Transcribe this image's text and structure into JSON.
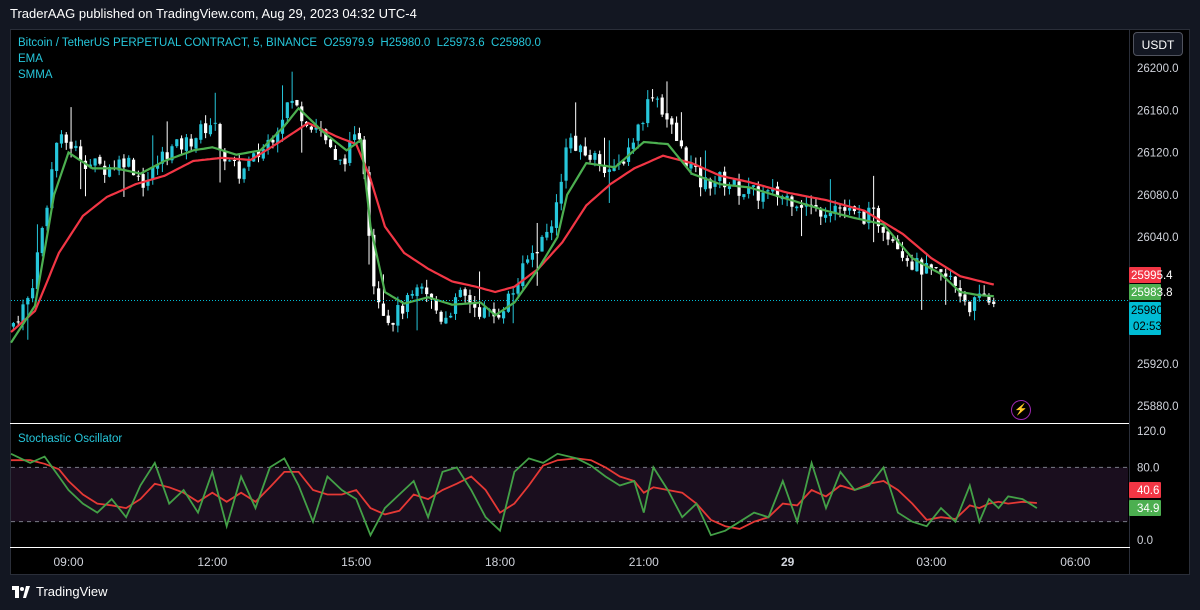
{
  "publisher": "TraderAAG published on TradingView.com, Aug 29, 2023 04:32 UTC-4",
  "currency_button": "USDT",
  "footer_logo": "TradingView",
  "colors": {
    "ema": "#4caf50",
    "smma": "#f23645",
    "up": "#26c6da",
    "down": "#ffffff",
    "stoch_k": "#43a047",
    "stoch_d": "#e53935",
    "band": "#1a0e1e"
  },
  "chart_data": [
    {
      "type": "candlestick",
      "title": "Bitcoin / TetherUS PERPETUAL CONTRACT, 5, BINANCE",
      "ohlc_label": {
        "open": "O25979.9",
        "high": "H25980.0",
        "low": "L25973.6",
        "close": "C25980.0"
      },
      "indicators": [
        "EMA",
        "SMMA"
      ],
      "y_ticks": [
        25880.0,
        25920.0,
        26040.0,
        26080.0,
        26120.0,
        26160.0,
        26200.0
      ],
      "y_tick_labels": [
        "25880.0",
        "25920.0",
        "26040.0",
        "26080.0",
        "26120.0",
        "26160.0",
        "26200.0"
      ],
      "ylim": [
        25864,
        26236
      ],
      "x_tick_labels": [
        "09:00",
        "12:00",
        "15:00",
        "18:00",
        "21:00",
        "29",
        "03:00",
        "06:00"
      ],
      "x_ticks_hours": [
        9,
        12,
        15,
        18,
        21,
        24,
        27,
        30
      ],
      "x_range_hours": [
        7.8,
        31.1
      ],
      "price_tags": [
        {
          "label": "25995.4",
          "value": 25995.4,
          "color": "#f23645"
        },
        {
          "label": "25983.8",
          "value": 25983.8,
          "color": "#4caf50"
        },
        {
          "label": "25980.0",
          "value": 25980.0,
          "color": "#00bcd4",
          "countdown": "02:53"
        }
      ],
      "close_keypoints": [
        [
          7.8,
          25955
        ],
        [
          8.2,
          25985
        ],
        [
          8.5,
          26060
        ],
        [
          8.75,
          26130
        ],
        [
          9.0,
          26130
        ],
        [
          9.4,
          26110
        ],
        [
          9.8,
          26105
        ],
        [
          10.2,
          26115
        ],
        [
          10.6,
          26090
        ],
        [
          11.0,
          26120
        ],
        [
          11.5,
          26130
        ],
        [
          12.0,
          26150
        ],
        [
          12.3,
          26110
        ],
        [
          12.6,
          26100
        ],
        [
          13.0,
          26120
        ],
        [
          13.3,
          26140
        ],
        [
          13.6,
          26170
        ],
        [
          14.0,
          26150
        ],
        [
          14.3,
          26140
        ],
        [
          14.6,
          26105
        ],
        [
          15.1,
          26140
        ],
        [
          15.2,
          26090
        ],
        [
          15.35,
          26000
        ],
        [
          15.5,
          25980
        ],
        [
          15.7,
          25960
        ],
        [
          16.0,
          25975
        ],
        [
          16.4,
          25990
        ],
        [
          16.8,
          25962
        ],
        [
          17.2,
          25985
        ],
        [
          17.6,
          25970
        ],
        [
          17.9,
          25965
        ],
        [
          18.3,
          25990
        ],
        [
          18.6,
          26020
        ],
        [
          19.0,
          26045
        ],
        [
          19.25,
          26080
        ],
        [
          19.4,
          26140
        ],
        [
          19.6,
          26120
        ],
        [
          20.0,
          26115
        ],
        [
          20.4,
          26100
        ],
        [
          20.8,
          26135
        ],
        [
          21.2,
          26180
        ],
        [
          21.5,
          26150
        ],
        [
          21.8,
          26120
        ],
        [
          22.2,
          26090
        ],
        [
          22.6,
          26095
        ],
        [
          23.0,
          26085
        ],
        [
          23.4,
          26080
        ],
        [
          23.8,
          26080
        ],
        [
          24.2,
          26075
        ],
        [
          24.6,
          26065
        ],
        [
          25.0,
          26070
        ],
        [
          25.4,
          26060
        ],
        [
          25.8,
          26060
        ],
        [
          26.2,
          26040
        ],
        [
          26.6,
          26015
        ],
        [
          27.0,
          26005
        ],
        [
          27.4,
          26000
        ],
        [
          27.8,
          25975
        ],
        [
          28.1,
          25982
        ],
        [
          28.3,
          25978
        ]
      ],
      "ema_keypoints": [
        [
          7.8,
          25940
        ],
        [
          8.3,
          25975
        ],
        [
          8.7,
          26080
        ],
        [
          9.0,
          26120
        ],
        [
          9.5,
          26105
        ],
        [
          10.0,
          26105
        ],
        [
          10.5,
          26100
        ],
        [
          11.0,
          26112
        ],
        [
          11.6,
          26122
        ],
        [
          12.0,
          26125
        ],
        [
          12.5,
          26118
        ],
        [
          13.0,
          26122
        ],
        [
          13.5,
          26145
        ],
        [
          13.8,
          26162
        ],
        [
          14.3,
          26140
        ],
        [
          14.8,
          26122
        ],
        [
          15.1,
          26132
        ],
        [
          15.3,
          26050
        ],
        [
          15.6,
          25988
        ],
        [
          16.0,
          25977
        ],
        [
          16.5,
          25983
        ],
        [
          17.0,
          25976
        ],
        [
          17.6,
          25978
        ],
        [
          17.9,
          25966
        ],
        [
          18.3,
          25978
        ],
        [
          18.8,
          26010
        ],
        [
          19.2,
          26040
        ],
        [
          19.4,
          26080
        ],
        [
          19.8,
          26110
        ],
        [
          20.4,
          26106
        ],
        [
          21.0,
          26130
        ],
        [
          21.5,
          26128
        ],
        [
          22.0,
          26100
        ],
        [
          22.6,
          26090
        ],
        [
          23.2,
          26087
        ],
        [
          24.0,
          26076
        ],
        [
          24.8,
          26065
        ],
        [
          25.4,
          26058
        ],
        [
          26.0,
          26052
        ],
        [
          26.6,
          26020
        ],
        [
          27.2,
          26005
        ],
        [
          27.6,
          25988
        ],
        [
          28.0,
          25985
        ],
        [
          28.3,
          25984
        ]
      ],
      "smma_keypoints": [
        [
          7.8,
          25950
        ],
        [
          8.3,
          25970
        ],
        [
          8.8,
          26025
        ],
        [
          9.3,
          26060
        ],
        [
          9.8,
          26078
        ],
        [
          10.4,
          26090
        ],
        [
          11.0,
          26098
        ],
        [
          11.6,
          26112
        ],
        [
          12.2,
          26115
        ],
        [
          12.8,
          26113
        ],
        [
          13.4,
          26130
        ],
        [
          14.0,
          26148
        ],
        [
          14.6,
          26135
        ],
        [
          15.0,
          26128
        ],
        [
          15.3,
          26095
        ],
        [
          15.6,
          26050
        ],
        [
          16.0,
          26025
        ],
        [
          16.5,
          26010
        ],
        [
          17.0,
          25998
        ],
        [
          17.5,
          25993
        ],
        [
          17.9,
          25988
        ],
        [
          18.3,
          25993
        ],
        [
          18.8,
          26010
        ],
        [
          19.3,
          26035
        ],
        [
          19.8,
          26070
        ],
        [
          20.3,
          26090
        ],
        [
          20.8,
          26105
        ],
        [
          21.4,
          26117
        ],
        [
          22.0,
          26110
        ],
        [
          22.6,
          26098
        ],
        [
          23.2,
          26092
        ],
        [
          24.0,
          26082
        ],
        [
          24.8,
          26075
        ],
        [
          25.6,
          26065
        ],
        [
          26.4,
          26043
        ],
        [
          27.0,
          26020
        ],
        [
          27.6,
          26003
        ],
        [
          28.3,
          25995
        ]
      ]
    },
    {
      "type": "line",
      "title": "Stochastic Oscillator",
      "y_ticks": [
        0.0,
        80.0,
        120.0
      ],
      "y_tick_labels": [
        "0.0",
        "80.0",
        "120.0"
      ],
      "ylim": [
        -8,
        128
      ],
      "band": [
        20,
        80
      ],
      "value_tags": [
        {
          "label": "40.6",
          "value": 40.6,
          "color": "#f23645"
        },
        {
          "label": "34.9",
          "value": 34.9,
          "color": "#4caf50"
        }
      ],
      "k_keypoints": [
        [
          7.8,
          95
        ],
        [
          8.2,
          85
        ],
        [
          8.5,
          92
        ],
        [
          8.8,
          70
        ],
        [
          9.0,
          55
        ],
        [
          9.3,
          40
        ],
        [
          9.6,
          30
        ],
        [
          9.9,
          45
        ],
        [
          10.2,
          25
        ],
        [
          10.5,
          60
        ],
        [
          10.8,
          85
        ],
        [
          11.1,
          40
        ],
        [
          11.4,
          55
        ],
        [
          11.7,
          30
        ],
        [
          12.0,
          75
        ],
        [
          12.3,
          15
        ],
        [
          12.6,
          70
        ],
        [
          12.9,
          35
        ],
        [
          13.2,
          80
        ],
        [
          13.5,
          90
        ],
        [
          13.8,
          60
        ],
        [
          14.1,
          20
        ],
        [
          14.4,
          70
        ],
        [
          14.7,
          55
        ],
        [
          15.0,
          45
        ],
        [
          15.3,
          5
        ],
        [
          15.6,
          35
        ],
        [
          15.9,
          50
        ],
        [
          16.2,
          65
        ],
        [
          16.5,
          25
        ],
        [
          16.8,
          75
        ],
        [
          17.1,
          80
        ],
        [
          17.4,
          55
        ],
        [
          17.7,
          25
        ],
        [
          18.0,
          10
        ],
        [
          18.3,
          75
        ],
        [
          18.6,
          90
        ],
        [
          18.9,
          85
        ],
        [
          19.2,
          95
        ],
        [
          19.6,
          90
        ],
        [
          19.9,
          82
        ],
        [
          20.2,
          70
        ],
        [
          20.5,
          60
        ],
        [
          20.8,
          65
        ],
        [
          21.0,
          30
        ],
        [
          21.2,
          80
        ],
        [
          21.5,
          55
        ],
        [
          21.8,
          25
        ],
        [
          22.1,
          40
        ],
        [
          22.4,
          5
        ],
        [
          22.7,
          10
        ],
        [
          23.0,
          20
        ],
        [
          23.3,
          30
        ],
        [
          23.6,
          25
        ],
        [
          23.9,
          65
        ],
        [
          24.2,
          20
        ],
        [
          24.5,
          85
        ],
        [
          24.8,
          35
        ],
        [
          25.1,
          75
        ],
        [
          25.4,
          55
        ],
        [
          25.7,
          60
        ],
        [
          26.0,
          80
        ],
        [
          26.3,
          30
        ],
        [
          26.6,
          20
        ],
        [
          26.9,
          15
        ],
        [
          27.2,
          35
        ],
        [
          27.5,
          20
        ],
        [
          27.8,
          60
        ],
        [
          28.0,
          20
        ],
        [
          28.2,
          45
        ],
        [
          28.4,
          35
        ],
        [
          28.6,
          48
        ],
        [
          28.9,
          45
        ],
        [
          29.2,
          35
        ]
      ],
      "d_keypoints": [
        [
          7.8,
          88
        ],
        [
          8.2,
          88
        ],
        [
          8.5,
          84
        ],
        [
          8.8,
          78
        ],
        [
          9.0,
          65
        ],
        [
          9.3,
          50
        ],
        [
          9.6,
          40
        ],
        [
          9.9,
          38
        ],
        [
          10.2,
          35
        ],
        [
          10.5,
          45
        ],
        [
          10.8,
          62
        ],
        [
          11.1,
          58
        ],
        [
          11.4,
          52
        ],
        [
          11.7,
          42
        ],
        [
          12.0,
          52
        ],
        [
          12.3,
          42
        ],
        [
          12.6,
          52
        ],
        [
          12.9,
          42
        ],
        [
          13.2,
          58
        ],
        [
          13.5,
          75
        ],
        [
          13.8,
          75
        ],
        [
          14.1,
          55
        ],
        [
          14.4,
          50
        ],
        [
          14.7,
          50
        ],
        [
          15.0,
          55
        ],
        [
          15.3,
          35
        ],
        [
          15.6,
          28
        ],
        [
          15.9,
          32
        ],
        [
          16.2,
          50
        ],
        [
          16.5,
          45
        ],
        [
          16.8,
          55
        ],
        [
          17.1,
          62
        ],
        [
          17.4,
          70
        ],
        [
          17.7,
          55
        ],
        [
          18.0,
          30
        ],
        [
          18.3,
          40
        ],
        [
          18.6,
          60
        ],
        [
          18.9,
          82
        ],
        [
          19.2,
          88
        ],
        [
          19.6,
          90
        ],
        [
          19.9,
          88
        ],
        [
          20.2,
          80
        ],
        [
          20.5,
          70
        ],
        [
          20.8,
          65
        ],
        [
          21.0,
          52
        ],
        [
          21.2,
          58
        ],
        [
          21.5,
          55
        ],
        [
          21.8,
          52
        ],
        [
          22.1,
          40
        ],
        [
          22.4,
          22
        ],
        [
          22.7,
          15
        ],
        [
          23.0,
          12
        ],
        [
          23.3,
          20
        ],
        [
          23.6,
          25
        ],
        [
          23.9,
          40
        ],
        [
          24.2,
          38
        ],
        [
          24.5,
          55
        ],
        [
          24.8,
          48
        ],
        [
          25.1,
          60
        ],
        [
          25.4,
          55
        ],
        [
          25.7,
          62
        ],
        [
          26.0,
          65
        ],
        [
          26.3,
          55
        ],
        [
          26.6,
          40
        ],
        [
          26.9,
          22
        ],
        [
          27.2,
          25
        ],
        [
          27.5,
          23
        ],
        [
          27.8,
          38
        ],
        [
          28.0,
          35
        ],
        [
          28.2,
          40
        ],
        [
          28.4,
          42
        ],
        [
          28.6,
          40
        ],
        [
          28.9,
          42
        ],
        [
          29.2,
          40.6
        ]
      ]
    }
  ]
}
